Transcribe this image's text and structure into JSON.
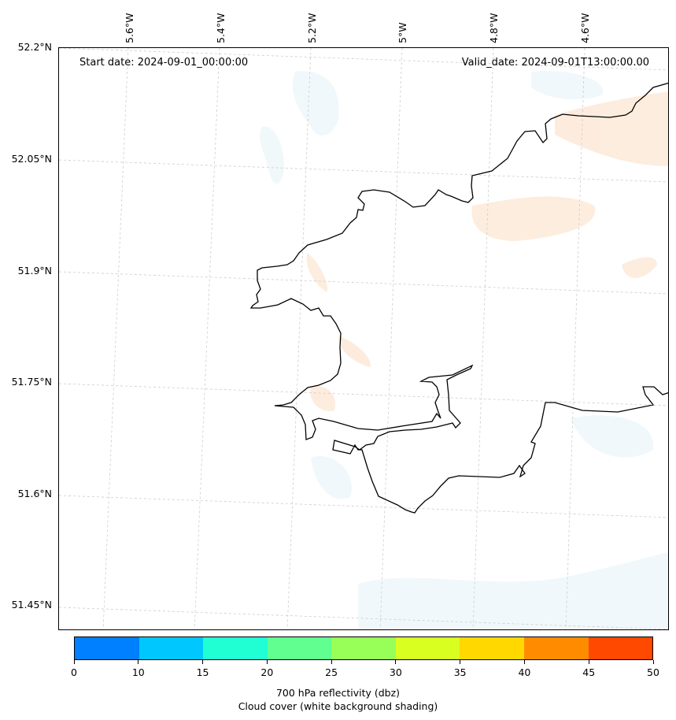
{
  "map": {
    "start_date": "Start date: 2024-09-01_00:00:00",
    "valid_date": "Valid_date: 2024-09-01T13:00:00.00",
    "lat_labels": [
      "52.2°N",
      "52.05°N",
      "51.9°N",
      "51.75°N",
      "51.6°N",
      "51.45°N"
    ],
    "lon_labels": [
      "5.6°W",
      "5.4°W",
      "5.2°W",
      "5°W",
      "4.8°W",
      "4.6°W"
    ],
    "coastline_color": "#000000",
    "gridline_color": "#cccccc"
  },
  "colorbar": {
    "ticks": [
      "0",
      "10",
      "15",
      "20",
      "25",
      "30",
      "35",
      "40",
      "45",
      "50"
    ],
    "colors": [
      "#0080ff",
      "#00c8ff",
      "#20ffd4",
      "#60ff90",
      "#98ff58",
      "#d8ff20",
      "#ffd800",
      "#ff8c00",
      "#ff4800"
    ],
    "label_line1": "700 hPa reflectivity (dbz)",
    "label_line2": "Cloud cover (white background shading)"
  }
}
